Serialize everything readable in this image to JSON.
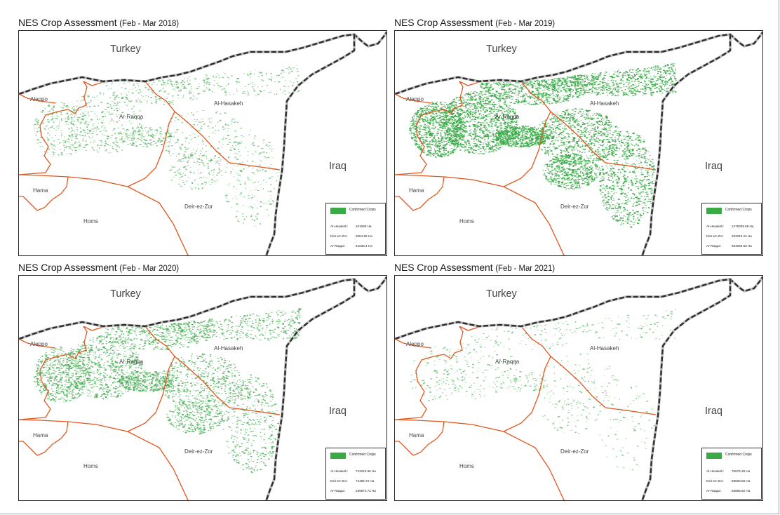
{
  "colors": {
    "crop_green": "#3aaa47",
    "border_black": "#2f2f2f",
    "border_grey": "#bdbdbd",
    "admin_orange": "#e2571f"
  },
  "panels": [
    {
      "title": "NES Crop Assessment",
      "period": "(Feb - Mar 2018)",
      "density": 0.25,
      "labels": {
        "turkey": "Turkey",
        "iraq": "Iraq",
        "aleppo": "Aleppo",
        "raqqa": "Ar-Raqqa",
        "hasakeh": "Al-Hasakeh",
        "deir": "Deir-ez-Zor",
        "hama": "Hama",
        "homs": "Homs"
      },
      "legend": {
        "label": "Confirmed Crops",
        "rows": [
          {
            "name": "Al-Hasakeh:",
            "value": "101080 Ha"
          },
          {
            "name": "Deir-ez-Zor:",
            "value": "2654.58 Ha"
          },
          {
            "name": "Ar-Raqqa:",
            "value": "61636.4 Ha"
          }
        ]
      }
    },
    {
      "title": "NES Crop Assessment",
      "period": "(Feb - Mar 2019)",
      "density": 1.0,
      "labels": {
        "turkey": "Turkey",
        "iraq": "Iraq",
        "aleppo": "Aleppo",
        "raqqa": "Ar-Raqqa",
        "hasakeh": "Al-Hasakeh",
        "deir": "Deir-ez-Zor",
        "hama": "Hama",
        "homs": "Homs"
      },
      "legend": {
        "label": "Confirmed Crops",
        "rows": [
          {
            "name": "Al-Hasakeh:",
            "value": "1278339.68 Ha"
          },
          {
            "name": "Deir-ez-Zor:",
            "value": "322010.24 Ha"
          },
          {
            "name": "Ar-Raqqa:",
            "value": "834062.56 Ha"
          }
        ]
      }
    },
    {
      "title": "NES Crop Assessment",
      "period": "(Feb - Mar 2020)",
      "density": 0.6,
      "labels": {
        "turkey": "Turkey",
        "iraq": "Iraq",
        "aleppo": "Aleppo",
        "raqqa": "Ar-Raqqa",
        "hasakeh": "Al-Hasakeh",
        "deir": "Deir-ez-Zor",
        "hama": "Hama",
        "homs": "Homs"
      },
      "legend": {
        "label": "Confirmed Crops",
        "rows": [
          {
            "name": "Al-Hasakeh:",
            "value": "743313.96 Ha"
          },
          {
            "name": "Deir-ez-Zor:",
            "value": "74485.72 Ha"
          },
          {
            "name": "Ar-Raqqa:",
            "value": "235974.72 Ha"
          }
        ]
      }
    },
    {
      "title": "NES Crop Assessment",
      "period": "(Feb - Mar 2021)",
      "density": 0.12,
      "labels": {
        "turkey": "Turkey",
        "iraq": "Iraq",
        "aleppo": "Aleppo",
        "raqqa": "Ar-Raqqa",
        "hasakeh": "Al-Hasakeh",
        "deir": "Deir-ez-Zor",
        "hama": "Hama",
        "homs": "Homs"
      },
      "legend": {
        "label": "Confirmed Crops",
        "rows": [
          {
            "name": "Al-Hasakeh:",
            "value": "75675.36 Ha"
          },
          {
            "name": "Deir-ez-Zor:",
            "value": "59506.56 Ha"
          },
          {
            "name": "Ar-Raqqa:",
            "value": "83665.92 Ha"
          }
        ]
      }
    }
  ]
}
